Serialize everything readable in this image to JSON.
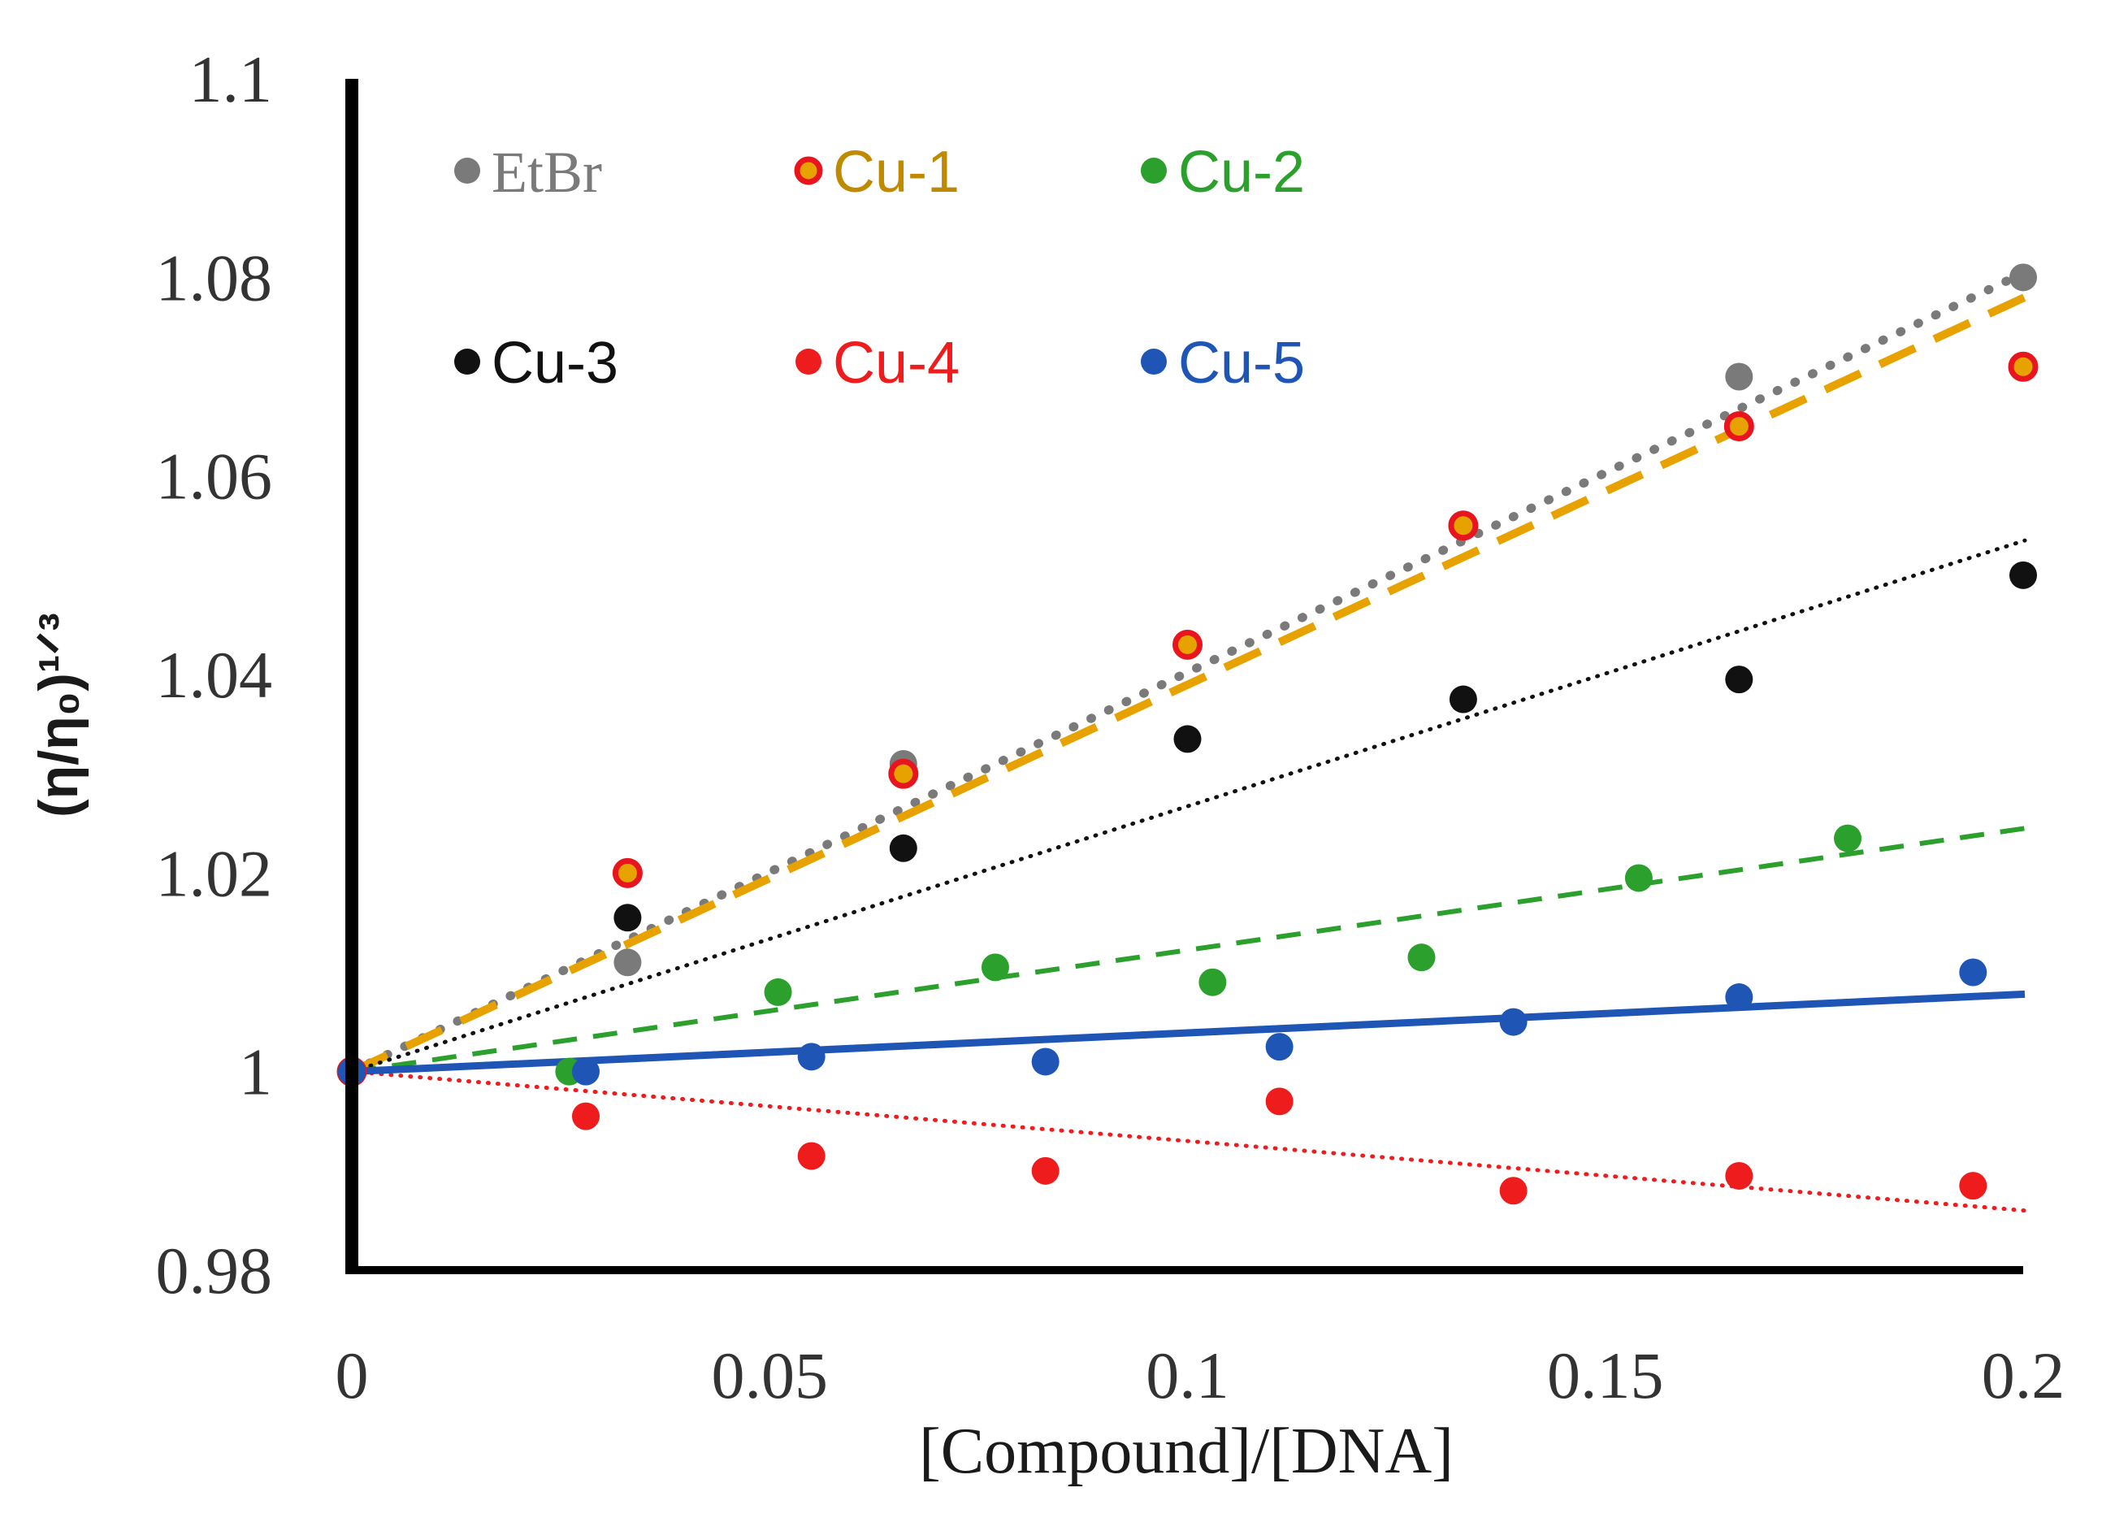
{
  "chart_data": {
    "type": "scatter",
    "xlabel": "[Compound]/[DNA]",
    "ylabel": "(η/η₀)¹ᐟ³",
    "xlim": [
      0,
      0.2
    ],
    "ylim": [
      0.98,
      1.1
    ],
    "x_ticks": [
      "0",
      "0.05",
      "0.1",
      "0.15",
      "0.2"
    ],
    "y_ticks": [
      "0.98",
      "1",
      "1.02",
      "1.04",
      "1.06",
      "1.08",
      "1.1"
    ],
    "legend_position": "top-left",
    "series": [
      {
        "name": "EtBr",
        "color": "#7a7a7a",
        "marker": "filled-circle",
        "points": [
          [
            0,
            1.0
          ],
          [
            0.033,
            1.011
          ],
          [
            0.066,
            1.031
          ],
          [
            0.1,
            1.043
          ],
          [
            0.133,
            1.055
          ],
          [
            0.166,
            1.07
          ],
          [
            0.2,
            1.08
          ]
        ],
        "trendline": {
          "style": "dotted-thick",
          "start": [
            0,
            1.0
          ],
          "end": [
            0.2,
            1.0805
          ]
        }
      },
      {
        "name": "Cu-1",
        "color": "#e8a200",
        "edge_color": "#e8141e",
        "marker": "ring-circle",
        "points": [
          [
            0,
            1.0
          ],
          [
            0.033,
            1.02
          ],
          [
            0.066,
            1.03
          ],
          [
            0.1,
            1.043
          ],
          [
            0.133,
            1.055
          ],
          [
            0.166,
            1.065
          ],
          [
            0.2,
            1.071
          ]
        ],
        "trendline": {
          "style": "dashed-long",
          "start": [
            0,
            1.0
          ],
          "end": [
            0.2,
            1.078
          ]
        }
      },
      {
        "name": "Cu-2",
        "color": "#2ca02c",
        "marker": "filled-circle",
        "points": [
          [
            0,
            1.0
          ],
          [
            0.026,
            1.0
          ],
          [
            0.051,
            1.008
          ],
          [
            0.077,
            1.0105
          ],
          [
            0.103,
            1.009
          ],
          [
            0.128,
            1.0115
          ],
          [
            0.154,
            1.0195
          ],
          [
            0.179,
            1.0235
          ]
        ],
        "trendline": {
          "style": "dashed",
          "start": [
            0,
            1.0
          ],
          "end": [
            0.2,
            1.0245
          ]
        }
      },
      {
        "name": "Cu-3",
        "color": "#111111",
        "marker": "filled-circle",
        "points": [
          [
            0,
            1.0
          ],
          [
            0.033,
            1.0155
          ],
          [
            0.066,
            1.0225
          ],
          [
            0.1,
            1.0335
          ],
          [
            0.133,
            1.0375
          ],
          [
            0.166,
            1.0395
          ],
          [
            0.2,
            1.05
          ]
        ],
        "trendline": {
          "style": "dotted",
          "start": [
            0,
            1.0
          ],
          "end": [
            0.2,
            1.0535
          ]
        }
      },
      {
        "name": "Cu-4",
        "color": "#ee1c1c",
        "marker": "filled-circle",
        "points": [
          [
            0,
            1.0
          ],
          [
            0.028,
            0.9955
          ],
          [
            0.055,
            0.9915
          ],
          [
            0.083,
            0.99
          ],
          [
            0.111,
            0.997
          ],
          [
            0.139,
            0.988
          ],
          [
            0.166,
            0.9895
          ],
          [
            0.194,
            0.9885
          ]
        ],
        "trendline": {
          "style": "dotted",
          "start": [
            0,
            1.0
          ],
          "end": [
            0.2,
            0.986
          ]
        }
      },
      {
        "name": "Cu-5",
        "color": "#1f55b4",
        "marker": "filled-circle",
        "points": [
          [
            0,
            1.0
          ],
          [
            0.028,
            1.0
          ],
          [
            0.055,
            1.0015
          ],
          [
            0.083,
            1.001
          ],
          [
            0.111,
            1.0025
          ],
          [
            0.139,
            1.005
          ],
          [
            0.166,
            1.0075
          ],
          [
            0.194,
            1.01
          ]
        ],
        "trendline": {
          "style": "solid",
          "start": [
            0,
            1.0
          ],
          "end": [
            0.2,
            1.0078
          ]
        }
      }
    ]
  }
}
